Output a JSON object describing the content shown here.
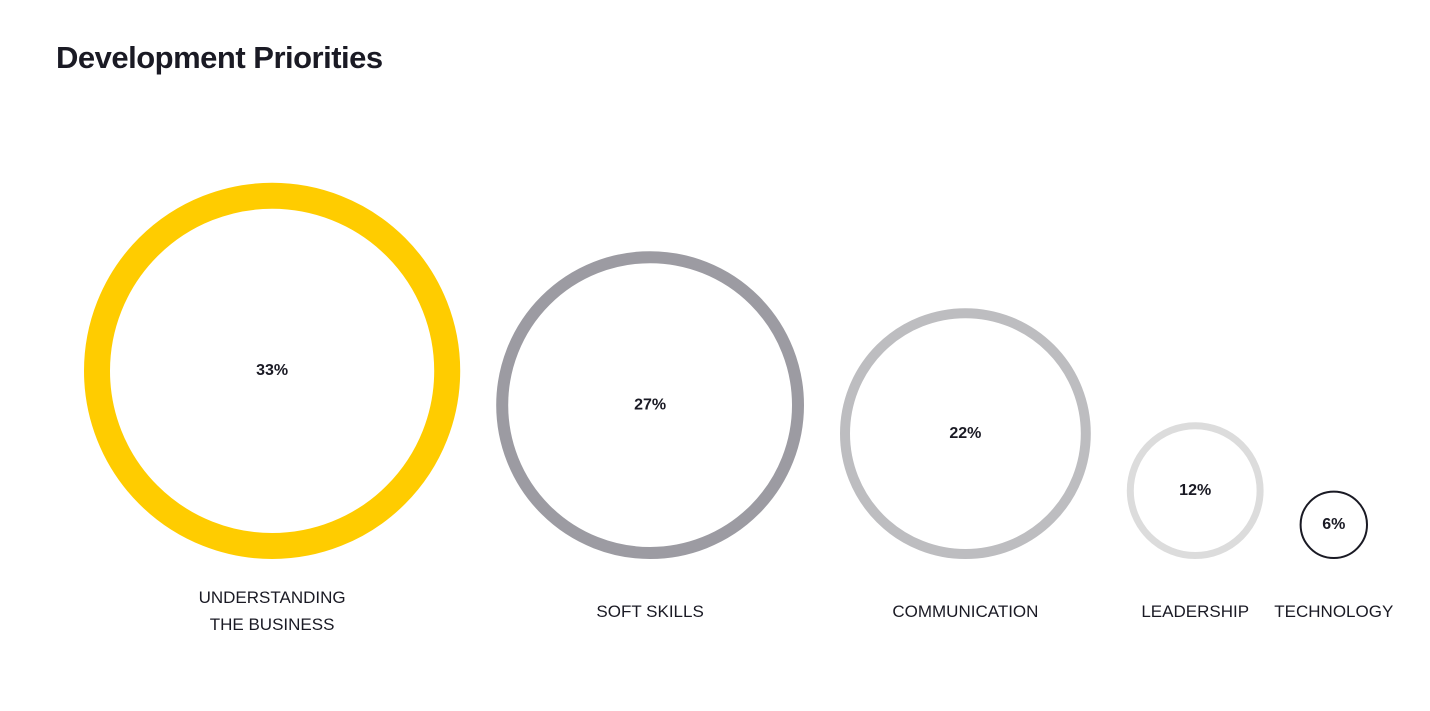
{
  "chart_data": {
    "type": "bubble",
    "title": "Development Priorities",
    "categories": [
      "UNDERSTANDING THE BUSINESS",
      "SOFT SKILLS",
      "COMMUNICATION",
      "LEADERSHIP",
      "TECHNOLOGY"
    ],
    "values": [
      33,
      27,
      22,
      12,
      6
    ],
    "value_labels": [
      "33%",
      "27%",
      "22%",
      "12%",
      "6%"
    ],
    "colors": [
      "#ffcc00",
      "#9c9ba2",
      "#bdbdc0",
      "#dcdcdc",
      "#1a1a24"
    ]
  }
}
